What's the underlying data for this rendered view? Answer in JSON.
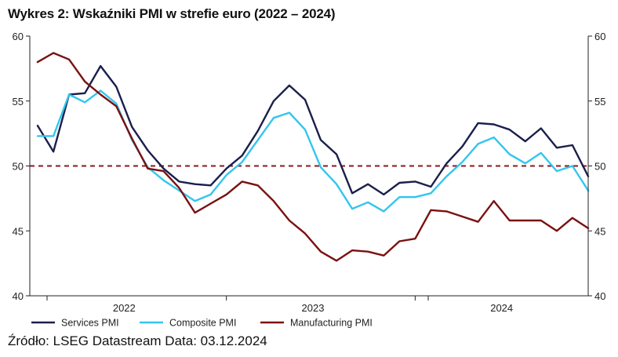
{
  "header": {
    "title": "Wykres 2: Wskaźniki PMI w strefie euro (2022 – 2024)"
  },
  "footer": {
    "source": "Źródło: LSEG Datastream Data: 03.12.2024"
  },
  "chart_data": {
    "type": "line",
    "title": "Wykres 2: Wskaźniki PMI w strefie euro (2022 – 2024)",
    "xlabel": "",
    "ylabel": "",
    "ylim": [
      40,
      60
    ],
    "y_ticks": [
      40,
      45,
      50,
      55,
      60
    ],
    "y_ticks_right": [
      40,
      45,
      50,
      55,
      60
    ],
    "x_tick_labels": [
      "2022",
      "2023",
      "2024"
    ],
    "reference_line": {
      "value": 50,
      "style": "dashed",
      "color": "#8b1a1a"
    },
    "legend_position": "bottom",
    "series": [
      {
        "name": "Services PMI",
        "color": "#1a1f4b",
        "values": [
          53.1,
          51.1,
          55.5,
          55.6,
          57.7,
          56.1,
          53.0,
          51.2,
          49.8,
          48.8,
          48.6,
          48.5,
          49.8,
          50.8,
          52.7,
          55.0,
          56.2,
          55.1,
          52.0,
          50.9,
          47.9,
          48.6,
          47.8,
          48.7,
          48.8,
          48.4,
          50.2,
          51.5,
          53.3,
          53.2,
          52.8,
          51.9,
          52.9,
          51.4,
          51.6,
          49.2
        ]
      },
      {
        "name": "Composite PMI",
        "color": "#33c5ef",
        "values": [
          52.3,
          52.3,
          55.5,
          54.9,
          55.8,
          54.8,
          52.0,
          49.9,
          48.9,
          48.1,
          47.3,
          47.8,
          49.3,
          50.3,
          52.0,
          53.7,
          54.1,
          52.8,
          49.9,
          48.6,
          46.7,
          47.2,
          46.5,
          47.6,
          47.6,
          47.9,
          49.2,
          50.3,
          51.7,
          52.2,
          50.9,
          50.2,
          51.0,
          49.6,
          50.0,
          48.1
        ]
      },
      {
        "name": "Manufacturing PMI",
        "color": "#7a1010",
        "values": [
          58.0,
          58.7,
          58.2,
          56.5,
          55.5,
          54.6,
          52.1,
          49.8,
          49.6,
          48.3,
          46.4,
          47.1,
          47.8,
          48.8,
          48.5,
          47.3,
          45.8,
          44.8,
          43.4,
          42.7,
          43.5,
          43.4,
          43.1,
          44.2,
          44.4,
          46.6,
          46.5,
          46.1,
          45.7,
          47.3,
          45.8,
          45.8,
          45.8,
          45.0,
          46.0,
          45.2
        ]
      }
    ]
  }
}
